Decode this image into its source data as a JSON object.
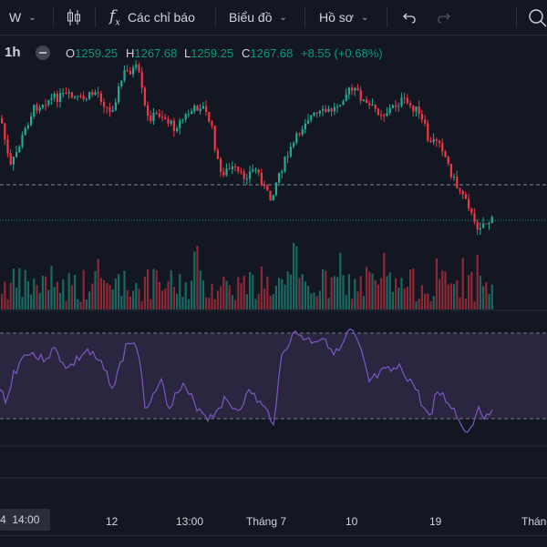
{
  "toolbar": {
    "interval": "W",
    "indicators_label": "Các chỉ báo",
    "chart_type_label": "Biểu đồ",
    "profile_label": "Hồ sơ"
  },
  "legend": {
    "timeframe": "1h",
    "o_key": "O",
    "o_val": "1259.25",
    "h_key": "H",
    "h_val": "1267.68",
    "l_key": "L",
    "l_val": "1259.25",
    "c_key": "C",
    "c_val": "1267.68",
    "change": "+8.55 (+0.68%)"
  },
  "time_axis": {
    "selected": "4  14:00",
    "labels": [
      "12",
      "13:00",
      "Tháng 7",
      "10",
      "19",
      "Tháng"
    ]
  },
  "colors": {
    "up": "#22ab94",
    "down": "#f23645",
    "background": "#131722",
    "rsi_line": "#7e57c2",
    "rsi_band": "#2a2640",
    "text": "#d1d4dc"
  },
  "icons": {
    "bar_style": "candles-icon",
    "indicators": "fx-icon",
    "undo": "undo-icon",
    "redo": "redo-icon",
    "search": "search-icon"
  }
}
